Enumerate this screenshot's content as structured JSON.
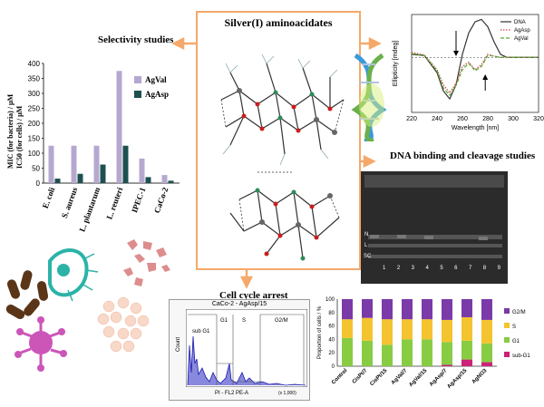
{
  "center": {
    "title": "Silver(I) aminoacidates"
  },
  "selectivity": {
    "title": "Selectivity studies",
    "ylabel_line1": "MIC (for bacteria) / μM",
    "ylabel_line2": "IC50 (for cells) / μM"
  },
  "dna": {
    "title": "DNA binding and cleavage studies"
  },
  "cellcycle": {
    "title": "Cell cycle arrest",
    "hist_title": "CaCo-2 - AgAsp/15",
    "xlabel": "PI - FL2 PE-A",
    "ylabel": "Count",
    "gate_subg1": "sub G1",
    "gate_g1": "G1",
    "gate_s": "S",
    "gate_g2m": "G2/M",
    "x_scale_note": "(x 1,000)"
  },
  "gel_labels": {
    "row_n": "N",
    "row_l": "L",
    "row_sc": "SC",
    "lanes": [
      "1",
      "2",
      "3",
      "4",
      "5",
      "6",
      "7",
      "8",
      "9"
    ]
  },
  "chart_data": [
    {
      "type": "bar",
      "categories": [
        "E. coli",
        "S. aureus",
        "L. plantarum",
        "L. reuteri",
        "IPEC-1",
        "CaCo-2"
      ],
      "series": [
        {
          "name": "AgVal",
          "values": [
            125,
            125,
            125,
            375,
            82,
            27
          ],
          "color": "#b5a8cf"
        },
        {
          "name": "AgAsp",
          "values": [
            15,
            31,
            62,
            125,
            20,
            8
          ],
          "color": "#1e5050"
        }
      ],
      "yticks": [
        0,
        50,
        100,
        150,
        200,
        250,
        300,
        350,
        400
      ],
      "ylim": [
        0,
        400
      ],
      "ylabel": "MIC (for bacteria) / μM IC50 (for cells) / μM",
      "legend": "top-right"
    },
    {
      "type": "line",
      "xlabel": "Wavelength [nm]",
      "ylabel": "Ellipticity [mdeg]",
      "xticks": [
        220,
        240,
        260,
        280,
        300,
        320
      ],
      "xlim": [
        220,
        320
      ],
      "ylim": [
        -9,
        7
      ],
      "legend": "top-right",
      "series": [
        {
          "name": "DNA",
          "color": "#333333",
          "style": "solid",
          "x": [
            220,
            230,
            240,
            245,
            250,
            255,
            260,
            265,
            270,
            275,
            280,
            285,
            290,
            295,
            300,
            310,
            320
          ],
          "y": [
            0.5,
            0.3,
            -2.5,
            -5.5,
            -6.8,
            -4.5,
            0.5,
            4.0,
            5.8,
            6.2,
            5.0,
            2.5,
            0.5,
            0,
            0,
            0,
            0
          ]
        },
        {
          "name": "AgAsp",
          "color": "#cc4444",
          "style": "dotted",
          "x": [
            220,
            230,
            240,
            245,
            250,
            255,
            260,
            265,
            270,
            275,
            280,
            285,
            290,
            295,
            300,
            310,
            320
          ],
          "y": [
            0.8,
            0.4,
            -2.0,
            -4.5,
            -5.8,
            -4.2,
            -1.5,
            -0.8,
            -2.0,
            -1.2,
            0.5,
            0.2,
            0,
            0,
            0,
            0,
            0
          ]
        },
        {
          "name": "AgVal",
          "color": "#55aa33",
          "style": "dashed",
          "x": [
            220,
            230,
            240,
            245,
            250,
            255,
            260,
            265,
            270,
            275,
            280,
            285,
            290,
            295,
            300,
            310,
            320
          ],
          "y": [
            0.6,
            0.3,
            -2.2,
            -5.0,
            -6.2,
            -4.6,
            -2.0,
            -1.0,
            -2.2,
            -1.5,
            0.3,
            0.2,
            0,
            0,
            0,
            0,
            0
          ]
        }
      ]
    },
    {
      "type": "bar",
      "stacked": true,
      "ylabel": "Proportion of cells / %",
      "yticks": [
        0,
        20,
        40,
        60,
        80,
        100
      ],
      "ylim": [
        0,
        100
      ],
      "categories": [
        "Control",
        "CisPt/7",
        "CisPt/15",
        "AgVal/7",
        "AgVal/15",
        "AgAsp/7",
        "AgAsp/15",
        "AgNO3"
      ],
      "legend": "right",
      "series": [
        {
          "name": "sub-G1",
          "color": "#cc2277",
          "values": [
            0,
            0,
            0,
            0,
            0,
            2,
            10,
            6
          ]
        },
        {
          "name": "G1",
          "color": "#88cc44",
          "values": [
            42,
            38,
            32,
            40,
            40,
            34,
            28,
            28
          ]
        },
        {
          "name": "S",
          "color": "#f4c430",
          "values": [
            28,
            34,
            38,
            30,
            30,
            33,
            35,
            35
          ]
        },
        {
          "name": "G2/M",
          "color": "#7a3aa8",
          "values": [
            30,
            28,
            30,
            30,
            30,
            31,
            27,
            31
          ]
        }
      ]
    }
  ]
}
